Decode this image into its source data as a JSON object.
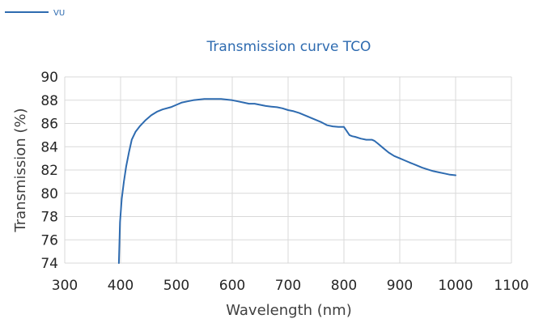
{
  "chart_data": {
    "type": "line",
    "title": "Transmission curve TCO",
    "xlabel": "Wavelength (nm)",
    "ylabel": "Transmission (%)",
    "xlim": [
      300,
      1100
    ],
    "ylim": [
      74,
      90
    ],
    "xticks": [
      300,
      400,
      500,
      600,
      700,
      800,
      900,
      1000,
      1100
    ],
    "yticks": [
      74,
      76,
      78,
      80,
      82,
      84,
      86,
      88,
      90
    ],
    "grid": true,
    "legend_position": "top-left",
    "series": [
      {
        "name": "VU",
        "color": "#2E6BB0",
        "x": [
          397,
          399,
          402,
          406,
          410,
          415,
          420,
          427,
          435,
          445,
          455,
          465,
          475,
          490,
          500,
          510,
          520,
          530,
          540,
          550,
          560,
          570,
          580,
          590,
          600,
          610,
          620,
          630,
          640,
          650,
          660,
          670,
          680,
          690,
          700,
          710,
          720,
          730,
          740,
          750,
          760,
          770,
          780,
          790,
          800,
          805,
          810,
          815,
          820,
          830,
          840,
          850,
          855,
          860,
          870,
          880,
          890,
          900,
          910,
          920,
          930,
          940,
          950,
          960,
          970,
          980,
          990,
          1000
        ],
        "y": [
          74.0,
          77.5,
          79.5,
          81.0,
          82.3,
          83.5,
          84.6,
          85.3,
          85.8,
          86.3,
          86.7,
          87.0,
          87.2,
          87.4,
          87.6,
          87.8,
          87.9,
          88.0,
          88.05,
          88.1,
          88.1,
          88.1,
          88.1,
          88.05,
          88.0,
          87.9,
          87.8,
          87.7,
          87.7,
          87.6,
          87.5,
          87.45,
          87.4,
          87.3,
          87.15,
          87.05,
          86.9,
          86.7,
          86.5,
          86.3,
          86.1,
          85.85,
          85.75,
          85.7,
          85.7,
          85.35,
          85.0,
          84.9,
          84.85,
          84.7,
          84.6,
          84.6,
          84.5,
          84.3,
          83.9,
          83.5,
          83.2,
          83.0,
          82.8,
          82.6,
          82.4,
          82.2,
          82.05,
          81.9,
          81.8,
          81.7,
          81.6,
          81.55
        ]
      }
    ]
  }
}
